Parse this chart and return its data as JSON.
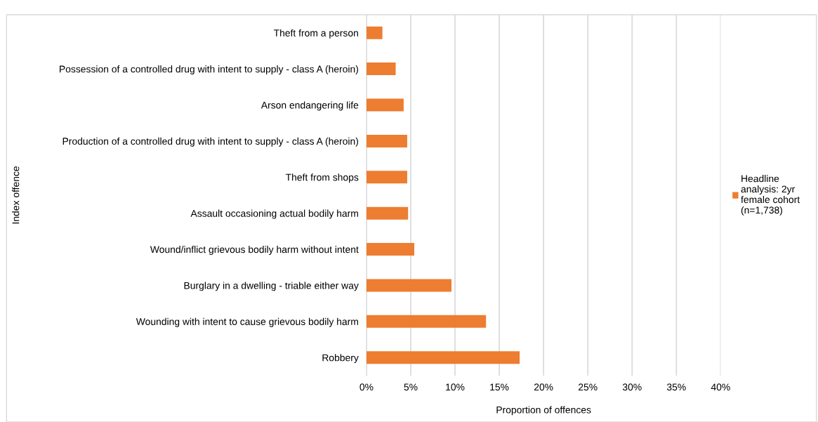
{
  "chart_data": {
    "type": "bar",
    "orientation": "horizontal",
    "categories": [
      "Theft from a person",
      "Possession of a controlled drug with intent to supply - class A (heroin)",
      "Arson endangering life",
      "Production of a controlled drug with intent to supply - class A (heroin)",
      "Theft from shops",
      "Assault occasioning actual bodily harm",
      "Wound/inflict grievous bodily harm without intent",
      "Burglary in a dwelling - triable either way",
      "Wounding with intent to cause grievous bodily harm",
      "Robbery"
    ],
    "series": [
      {
        "name": "Headline analysis: 2yr female cohort (n=1,738)",
        "color": "#ed7d31",
        "values": [
          1.8,
          3.3,
          4.2,
          4.6,
          4.6,
          4.7,
          5.4,
          9.6,
          13.5,
          17.3
        ]
      }
    ],
    "xlabel": "Proportion of offences",
    "ylabel": "Index offence",
    "xlim": [
      0,
      40
    ],
    "xticks": [
      {
        "value": 0,
        "label": "0%"
      },
      {
        "value": 5,
        "label": "5%"
      },
      {
        "value": 10,
        "label": "10%"
      },
      {
        "value": 15,
        "label": "15%"
      },
      {
        "value": 20,
        "label": "20%"
      },
      {
        "value": 25,
        "label": "25%"
      },
      {
        "value": 30,
        "label": "30%"
      },
      {
        "value": 35,
        "label": "35%"
      },
      {
        "value": 40,
        "label": "40%"
      }
    ],
    "grid": "x",
    "legend": "right"
  }
}
